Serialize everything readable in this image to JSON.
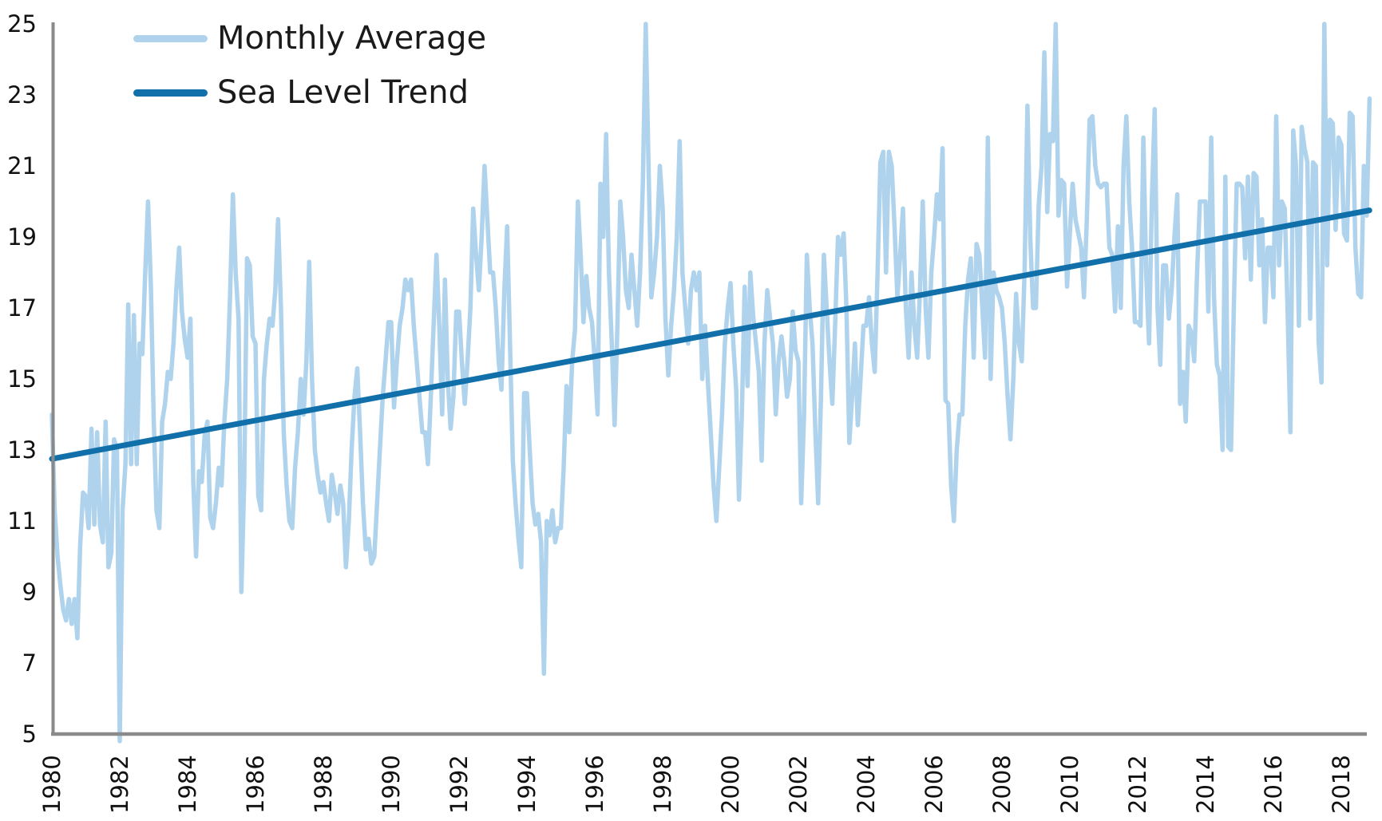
{
  "chart_data": {
    "type": "line",
    "title": "",
    "legend_position": "top-left",
    "axis_color": "#8a8a8a",
    "text_color": "#1a1a1a",
    "ylim": [
      5,
      25
    ],
    "y_tick_labels": [
      "25",
      "23",
      "21",
      "19",
      "17",
      "15",
      "13",
      "11",
      "9",
      "7",
      "5"
    ],
    "x_tick_labels": [
      "1980",
      "1982",
      "1984",
      "1986",
      "1988",
      "1990",
      "1992",
      "1994",
      "1996",
      "1998",
      "2000",
      "2002",
      "2004",
      "2006",
      "2008",
      "2010",
      "2012",
      "2014",
      "2016",
      "2018"
    ],
    "x_start_year": 1980,
    "x_years_per_tick": 2,
    "grid": false,
    "series": [
      {
        "name": "Monthly Average",
        "color": "#AFD3ED",
        "kind": "monthly",
        "start": "1980-01",
        "interval": "monthly",
        "values": [
          14.0,
          11.3,
          10.0,
          9.2,
          8.5,
          8.2,
          8.8,
          8.1,
          8.8,
          7.7,
          10.3,
          11.8,
          11.7,
          10.8,
          13.6,
          10.9,
          13.5,
          10.9,
          10.4,
          13.8,
          9.7,
          10.1,
          13.3,
          13.0,
          4.8,
          11.3,
          12.6,
          17.1,
          12.6,
          16.8,
          12.6,
          16.0,
          15.7,
          18.0,
          20.0,
          17.6,
          13.9,
          11.3,
          10.8,
          13.8,
          14.3,
          15.2,
          15.0,
          16.0,
          17.5,
          18.7,
          16.9,
          16.1,
          15.6,
          16.7,
          12.1,
          10.0,
          12.4,
          12.1,
          13.4,
          13.8,
          11.1,
          10.8,
          11.5,
          12.5,
          12.0,
          13.8,
          15.0,
          17.3,
          20.2,
          18.0,
          16.7,
          9.0,
          12.0,
          18.4,
          18.2,
          16.2,
          16.0,
          11.7,
          11.3,
          15.0,
          16.0,
          16.7,
          16.5,
          17.5,
          19.5,
          17.0,
          13.5,
          12.0,
          11.0,
          10.8,
          12.5,
          13.5,
          15.0,
          14.0,
          15.5,
          18.3,
          15.0,
          13.0,
          12.3,
          11.8,
          12.1,
          11.5,
          11.0,
          12.3,
          11.8,
          11.2,
          12.0,
          11.5,
          9.7,
          11.0,
          13.0,
          14.5,
          15.3,
          13.5,
          11.5,
          10.2,
          10.5,
          9.8,
          10.0,
          11.5,
          13.0,
          14.5,
          15.5,
          16.6,
          16.6,
          14.2,
          15.5,
          16.5,
          17.0,
          17.8,
          17.5,
          17.8,
          16.5,
          15.5,
          14.5,
          13.5,
          13.5,
          12.6,
          14.5,
          16.5,
          18.5,
          16.5,
          14.0,
          17.8,
          15.0,
          13.6,
          14.5,
          16.9,
          16.9,
          15.5,
          14.3,
          15.5,
          17.0,
          19.8,
          18.5,
          17.5,
          19.0,
          21.0,
          19.5,
          18.0,
          18.0,
          17.0,
          15.5,
          14.7,
          17.5,
          19.3,
          16.0,
          12.7,
          11.5,
          10.5,
          9.7,
          14.6,
          14.6,
          13.0,
          11.5,
          10.9,
          11.2,
          10.4,
          6.7,
          11.0,
          10.6,
          11.3,
          10.4,
          10.8,
          10.8,
          12.5,
          14.8,
          13.5,
          15.5,
          16.4,
          20.0,
          18.5,
          16.6,
          17.9,
          17.0,
          16.6,
          15.5,
          14.0,
          20.5,
          19.0,
          21.9,
          18.0,
          16.0,
          13.7,
          16.5,
          20.0,
          19.0,
          17.5,
          17.0,
          18.5,
          17.5,
          16.5,
          18.0,
          20.5,
          25.0,
          21.0,
          17.3,
          18.0,
          19.0,
          21.0,
          19.8,
          16.7,
          15.1,
          16.5,
          17.5,
          19.0,
          21.7,
          18.0,
          17.0,
          16.0,
          17.5,
          18.0,
          17.5,
          18.0,
          15.0,
          16.5,
          14.9,
          13.5,
          12.0,
          11.0,
          12.5,
          14.0,
          16.0,
          17.0,
          17.7,
          16.0,
          14.7,
          11.6,
          14.0,
          17.6,
          14.8,
          18.0,
          16.8,
          16.0,
          15.2,
          12.7,
          16.0,
          17.5,
          16.7,
          16.0,
          14.0,
          15.5,
          16.2,
          15.5,
          14.5,
          15.0,
          16.9,
          15.8,
          15.5,
          11.5,
          14.0,
          18.5,
          17.0,
          16.0,
          13.5,
          11.5,
          14.5,
          18.5,
          17.0,
          15.5,
          14.3,
          16.5,
          19.0,
          18.5,
          19.1,
          17.0,
          13.2,
          14.5,
          16.0,
          13.7,
          15.0,
          16.5,
          16.5,
          17.3,
          16.0,
          15.2,
          18.0,
          21.1,
          21.4,
          18.0,
          21.4,
          21.0,
          19.3,
          17.3,
          18.5,
          19.8,
          17.0,
          15.6,
          18.0,
          16.5,
          15.6,
          17.5,
          20.0,
          17.0,
          15.6,
          18.0,
          19.0,
          20.2,
          19.5,
          21.5,
          14.4,
          14.3,
          12.0,
          11.0,
          13.0,
          14.0,
          14.0,
          16.5,
          17.8,
          18.4,
          15.6,
          18.8,
          18.5,
          17.1,
          15.6,
          21.8,
          15.0,
          18.0,
          17.5,
          17.3,
          17.0,
          16.0,
          14.5,
          13.3,
          15.0,
          17.4,
          16.0,
          15.5,
          18.0,
          22.7,
          19.0,
          17.0,
          17.0,
          19.9,
          21.0,
          24.2,
          19.7,
          21.9,
          21.7,
          25.0,
          19.6,
          20.6,
          20.5,
          17.6,
          19.1,
          20.5,
          19.5,
          19.1,
          18.7,
          17.3,
          19.5,
          22.3,
          22.4,
          21.0,
          20.5,
          20.4,
          20.5,
          20.5,
          18.7,
          18.5,
          16.9,
          19.3,
          17.0,
          21.0,
          22.4,
          20.0,
          18.7,
          16.6,
          16.6,
          16.5,
          21.8,
          18.0,
          16.0,
          20.0,
          22.6,
          17.0,
          15.4,
          18.2,
          18.2,
          16.7,
          17.5,
          19.0,
          20.2,
          14.3,
          15.2,
          13.8,
          16.5,
          16.3,
          15.5,
          18.0,
          20.0,
          20.0,
          20.0,
          16.9,
          21.8,
          17.3,
          15.4,
          15.1,
          13.0,
          20.7,
          13.1,
          13.0,
          17.0,
          20.5,
          20.5,
          20.4,
          18.4,
          20.7,
          17.8,
          20.8,
          20.7,
          18.2,
          19.5,
          16.6,
          18.7,
          18.7,
          17.3,
          22.4,
          18.2,
          20.0,
          19.8,
          17.0,
          13.5,
          22.0,
          21.0,
          16.5,
          22.1,
          21.5,
          21.1,
          16.7,
          21.1,
          21.0,
          16.0,
          14.9,
          25.0,
          18.2,
          22.3,
          22.2,
          19.2,
          21.8,
          21.6,
          19.1,
          18.9,
          22.5,
          22.4,
          18.7,
          17.4,
          17.3,
          21.0,
          19.6,
          22.9
        ]
      },
      {
        "name": "Sea Level Trend",
        "color": "#1170AA",
        "kind": "trend",
        "points": [
          {
            "x": 1980.0,
            "y": 12.75
          },
          {
            "x": 2018.83,
            "y": 19.75
          }
        ]
      }
    ]
  }
}
